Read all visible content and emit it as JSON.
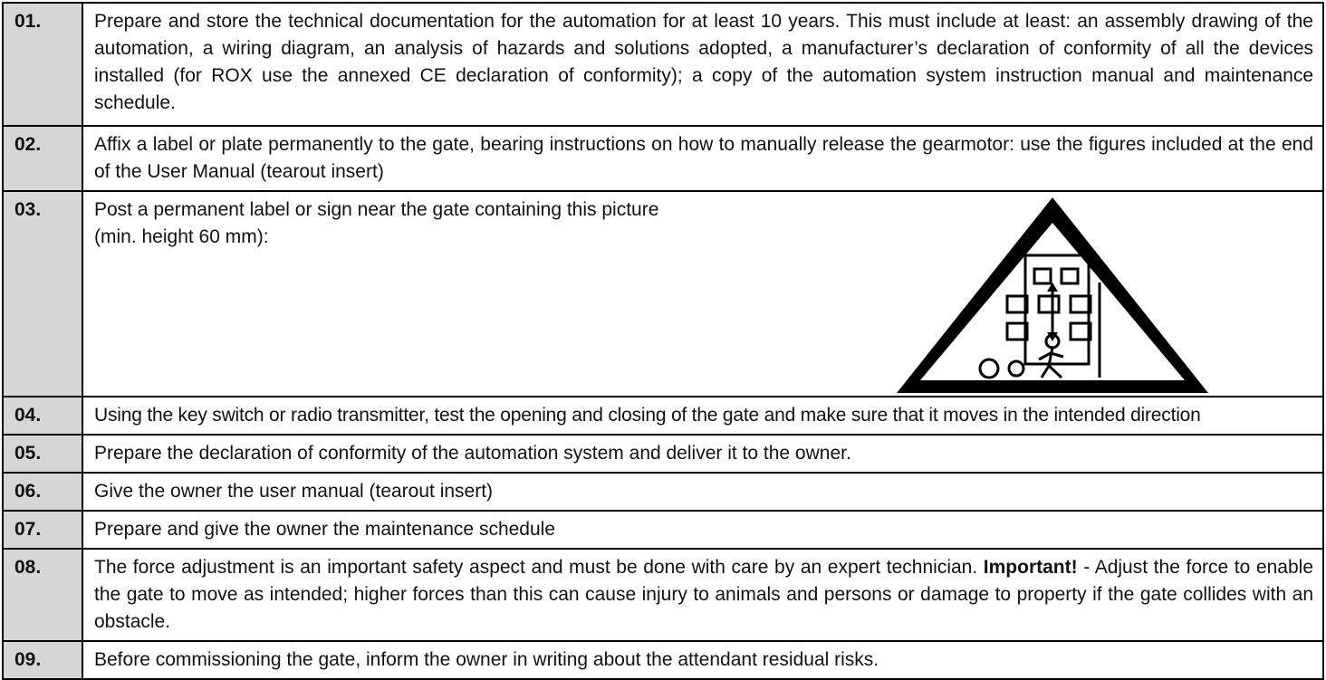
{
  "rows": [
    {
      "number": "01.",
      "text": "Prepare and store the technical documentation for the automation for at least 10 years. This must include at least: an assembly drawing of the automation, a wiring diagram, an analysis of hazards and solutions adopted, a manufacturer’s declaration of conformity of all the devices installed (for ROX use the annexed CE declaration of conformity); a copy of the automation system instruction manual and maintenance schedule."
    },
    {
      "number": "02.",
      "text": "Affix a label or plate permanently to the gate, bearing instructions on how to manually release the gearmotor: use the figures included at the end of the User Manual (tearout insert)"
    },
    {
      "number": "03.",
      "text": "Post a permanent label or sign near the gate containing this picture (min. height 60 mm):"
    },
    {
      "number": "04.",
      "text": "Using the key switch or radio transmitter, test the opening and closing of the gate and make sure that it moves in the intended direction"
    },
    {
      "number": "05.",
      "text": "Prepare the declaration of conformity of the automation system and deliver it to the owner."
    },
    {
      "number": "06.",
      "text": "Give the owner the user manual (tearout insert)"
    },
    {
      "number": "07.",
      "text": "Prepare and give the owner the maintenance schedule"
    },
    {
      "number": "08.",
      "text": "The force adjustment is an important safety aspect and must be done with care by an expert technician.",
      "bold": "Important!",
      "text_after": "- Adjust the force to enable the gate to move as intended; higher forces than this can cause injury to animals and persons or damage to property if the gate collides with an obstacle."
    },
    {
      "number": "09.",
      "text": "Before commissioning the gate, inform the owner in writing about the attendant residual risks."
    }
  ]
}
